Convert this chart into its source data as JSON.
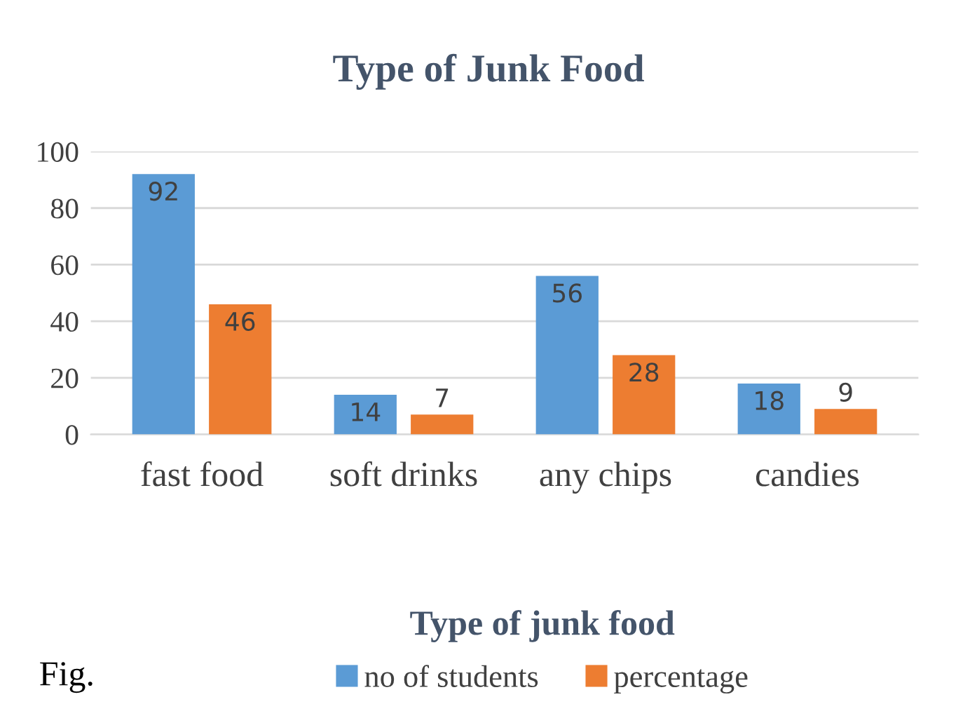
{
  "chart_data": {
    "type": "bar",
    "title": "Type of Junk Food",
    "xlabel": "Type of junk food",
    "categories": [
      "fast food",
      "soft drinks",
      "any chips",
      "candies"
    ],
    "series": [
      {
        "name": "no of students",
        "color": "#5b9bd5",
        "values": [
          92,
          14,
          56,
          18
        ]
      },
      {
        "name": "percentage",
        "color": "#ed7d31",
        "values": [
          46,
          7,
          28,
          9
        ]
      }
    ],
    "ylim": [
      0,
      100
    ],
    "yticks": [
      0,
      20,
      40,
      60,
      80,
      100
    ],
    "grid": "y",
    "legend": "bottom",
    "data_labels": true,
    "annotations": [
      "Fig."
    ]
  }
}
